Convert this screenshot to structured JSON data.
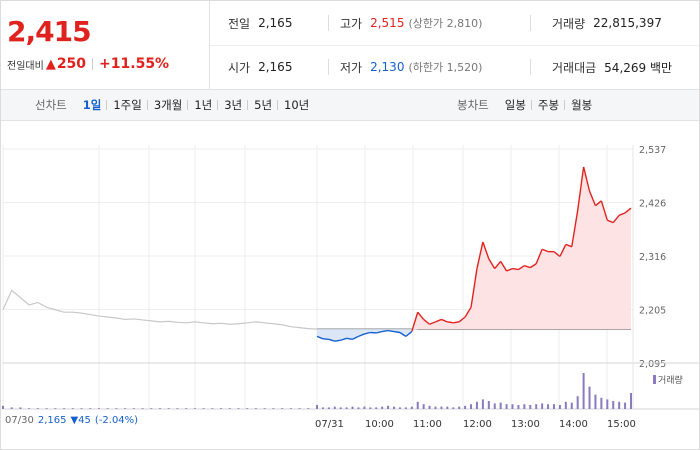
{
  "quote": {
    "price": "2,415",
    "change_label": "전일대비",
    "change_arrow": "▲",
    "change": "250",
    "change_pct": "+11.55%"
  },
  "stats": {
    "prev_close_label": "전일",
    "prev_close": "2,165",
    "high_label": "고가",
    "high": "2,515",
    "upper_limit": "(상한가 2,810)",
    "volume_label": "거래량",
    "volume": "22,815,397",
    "open_label": "시가",
    "open": "2,165",
    "low_label": "저가",
    "low": "2,130",
    "lower_limit": "(하한가 1,520)",
    "amount_label": "거래대금",
    "amount": "54,269 백만"
  },
  "toolbar": {
    "line_label": "선차트",
    "line_periods": [
      "1일",
      "1주일",
      "3개월",
      "1년",
      "3년",
      "5년",
      "10년"
    ],
    "selected": "1일",
    "candle_label": "봉차트",
    "candle_periods": [
      "일봉",
      "주봉",
      "월봉"
    ]
  },
  "chart_data": {
    "type": "line",
    "y_ticks": [
      "2,537",
      "2,426",
      "2,316",
      "2,205",
      "2,095"
    ],
    "ylim": [
      2095,
      2537
    ],
    "base": 2165,
    "x_labels": [
      "07/30",
      "07/31",
      "10:00",
      "11:00",
      "12:00",
      "13:00",
      "14:00",
      "15:00"
    ],
    "volume_label": "거래량",
    "prev_day": {
      "label": "07/30",
      "close": "2,165",
      "change": "▼45",
      "pct": "(-2.04%)",
      "values": [
        2205,
        2245,
        2230,
        2215,
        2220,
        2210,
        2205,
        2200,
        2200,
        2198,
        2195,
        2192,
        2190,
        2188,
        2185,
        2186,
        2184,
        2182,
        2180,
        2181,
        2179,
        2178,
        2180,
        2178,
        2176,
        2177,
        2175,
        2176,
        2178,
        2180,
        2178,
        2176,
        2174,
        2170,
        2168,
        2166,
        2165
      ]
    },
    "today": {
      "values": [
        2150,
        2145,
        2144,
        2140,
        2142,
        2146,
        2144,
        2150,
        2155,
        2158,
        2157,
        2160,
        2162,
        2160,
        2158,
        2150,
        2160,
        2200,
        2185,
        2175,
        2180,
        2185,
        2180,
        2178,
        2180,
        2190,
        2210,
        2290,
        2345,
        2310,
        2290,
        2305,
        2285,
        2290,
        2288,
        2296,
        2292,
        2300,
        2330,
        2325,
        2325,
        2315,
        2340,
        2335,
        2410,
        2500,
        2450,
        2420,
        2430,
        2390,
        2385,
        2400,
        2405,
        2415
      ]
    },
    "volume_today": [
      5,
      2,
      2,
      3,
      2,
      2,
      3,
      2,
      3,
      2,
      2,
      3,
      4,
      3,
      2,
      2,
      3,
      9,
      6,
      4,
      3,
      3,
      3,
      2,
      3,
      4,
      6,
      9,
      12,
      10,
      7,
      8,
      6,
      6,
      5,
      6,
      5,
      6,
      7,
      6,
      6,
      5,
      9,
      8,
      16,
      45,
      28,
      18,
      14,
      12,
      10,
      9,
      8,
      20
    ],
    "volume_prev": [
      4,
      2,
      2,
      1,
      1,
      1,
      1,
      1,
      1,
      1,
      1,
      1,
      1,
      1,
      1,
      1,
      1,
      1,
      1,
      1,
      1,
      1,
      1,
      1,
      1,
      1,
      1,
      1,
      1,
      1,
      1,
      1,
      1,
      1,
      1,
      1,
      2
    ]
  },
  "colors": {
    "up": "#e0221e",
    "down": "#1560cc",
    "prev_line": "#c8c8c8",
    "volume": "#8a7bbf"
  }
}
